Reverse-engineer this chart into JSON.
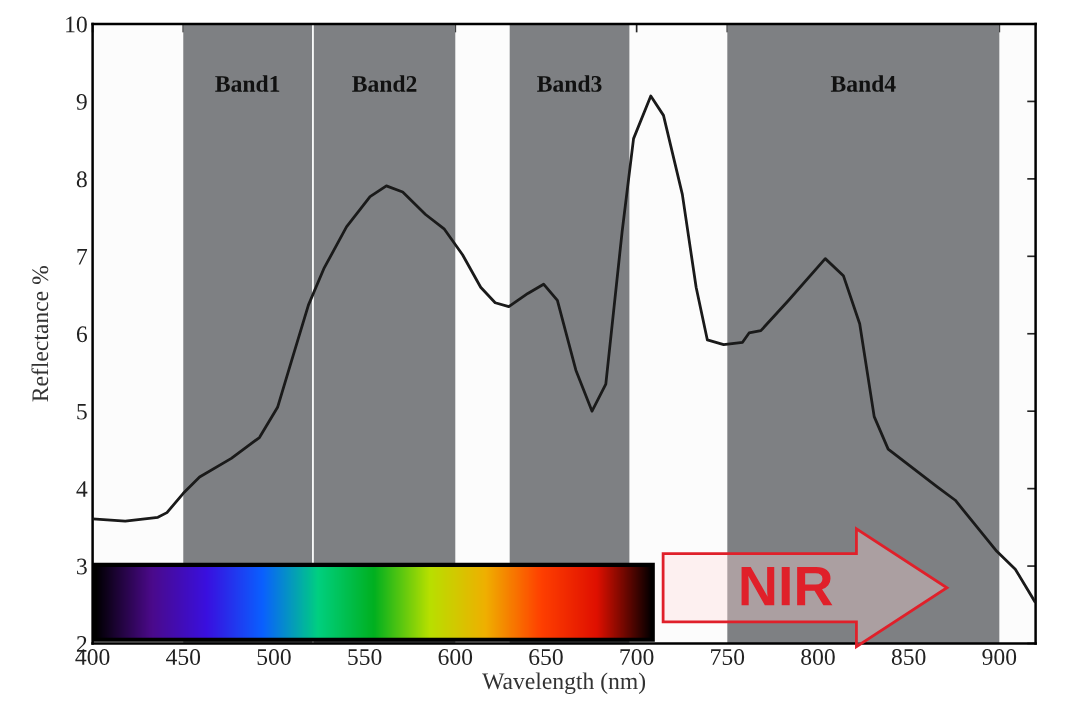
{
  "chart_data": {
    "type": "line",
    "xlabel": "Wavelength (nm)",
    "ylabel": "Reflectance %",
    "xlim": [
      400,
      920
    ],
    "ylim": [
      2,
      10
    ],
    "xticks": [
      400,
      450,
      500,
      550,
      600,
      650,
      700,
      750,
      800,
      850,
      900
    ],
    "yticks": [
      2,
      3,
      4,
      5,
      6,
      7,
      8,
      9,
      10
    ],
    "grid": false,
    "legend": false,
    "marker": "none",
    "line_style": "solid",
    "series": [
      {
        "color": "#1a1a1a",
        "x": [
          400,
          418,
          436,
          441,
          450,
          459,
          476.5,
          492,
          502,
          509.7,
          519,
          527.5,
          540,
          553,
          562,
          571,
          583.6,
          594,
          604,
          614,
          622,
          629.5,
          640,
          648.7,
          656.3,
          666.5,
          675.4,
          683,
          692,
          698.3,
          707.8,
          714.8,
          725.2,
          732.8,
          739,
          748,
          758.4,
          762,
          768.5,
          783.7,
          804,
          814,
          823,
          831,
          838.7,
          865.4,
          875.7,
          898.6,
          908.8,
          919.6
        ],
        "values": [
          3.61,
          3.58,
          3.63,
          3.69,
          3.94,
          4.15,
          4.39,
          4.66,
          5.05,
          5.65,
          6.37,
          6.84,
          7.38,
          7.77,
          7.91,
          7.83,
          7.54,
          7.35,
          7.02,
          6.6,
          6.4,
          6.35,
          6.52,
          6.64,
          6.43,
          5.53,
          5.0,
          5.35,
          7.32,
          8.52,
          9.07,
          8.82,
          7.8,
          6.6,
          5.92,
          5.86,
          5.89,
          6.01,
          6.04,
          6.43,
          6.97,
          6.75,
          6.13,
          4.93,
          4.51,
          4.03,
          3.85,
          3.19,
          2.96,
          2.54
        ]
      }
    ],
    "bands": [
      {
        "axis": "x",
        "from": 450,
        "to": 521,
        "label": "Band1",
        "color": "#7e8083"
      },
      {
        "axis": "x",
        "from": 522,
        "to": 600,
        "label": "Band2",
        "color": "#7e8083"
      },
      {
        "axis": "x",
        "from": 630,
        "to": 696,
        "label": "Band3",
        "color": "#7e8083"
      },
      {
        "axis": "x",
        "from": 750,
        "to": 900,
        "label": "Band4",
        "color": "#7e8083"
      }
    ],
    "annotations": [
      "NIR"
    ]
  }
}
